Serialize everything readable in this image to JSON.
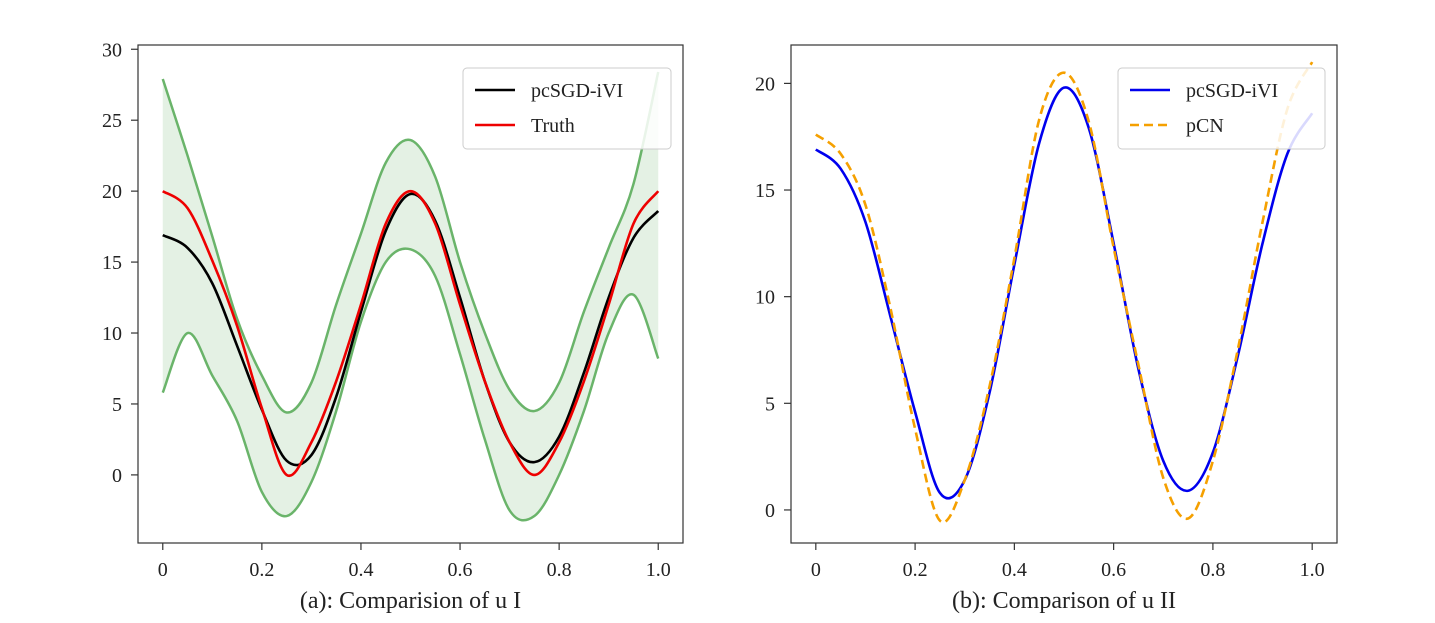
{
  "chart_data": [
    {
      "type": "line",
      "title": "",
      "xlabel": "(a): Comparision of u I",
      "ylabel": "",
      "xlim": [
        -0.05,
        1.05
      ],
      "ylim": [
        -4.8,
        30.3
      ],
      "xticks": [
        0,
        0.2,
        0.4,
        0.6,
        0.8,
        1.0
      ],
      "xtick_labels": [
        "0",
        "0.2",
        "0.4",
        "0.6",
        "0.8",
        "1.0"
      ],
      "yticks": [
        0,
        5,
        10,
        15,
        20,
        25,
        30
      ],
      "ytick_labels": [
        "0",
        "5",
        "10",
        "15",
        "20",
        "25",
        "30"
      ],
      "grid": false,
      "legend_position": "top-right",
      "legend": [
        "pcSGD-iVI",
        "Truth"
      ],
      "x": [
        0,
        0.05,
        0.1,
        0.15,
        0.2,
        0.25,
        0.3,
        0.35,
        0.4,
        0.45,
        0.5,
        0.55,
        0.6,
        0.65,
        0.7,
        0.75,
        0.8,
        0.85,
        0.9,
        0.95,
        1.0
      ],
      "series": [
        {
          "name": "pcSGD-iVI",
          "color": "#000000",
          "style": "solid",
          "values": [
            16.9,
            16.0,
            13.5,
            9.1,
            4.6,
            1.0,
            1.4,
            5.5,
            11.5,
            17.2,
            19.8,
            17.9,
            12.5,
            6.6,
            2.3,
            0.9,
            2.7,
            7.2,
            12.5,
            16.7,
            18.6
          ]
        },
        {
          "name": "Truth",
          "color": "#ee0000",
          "style": "solid",
          "values": [
            20.0,
            18.8,
            15.1,
            10.5,
            4.7,
            0.0,
            2.3,
            6.6,
            12.0,
            17.7,
            20.0,
            17.7,
            12.0,
            6.6,
            2.3,
            0.0,
            2.3,
            6.6,
            12.0,
            17.7,
            20.0
          ]
        }
      ],
      "band": {
        "color": "#6ab46a",
        "upper": [
          27.9,
          22.5,
          16.8,
          11.0,
          7.0,
          4.4,
          6.5,
          12.0,
          17.0,
          22.0,
          23.6,
          21.0,
          15.0,
          10.0,
          6.0,
          4.5,
          6.5,
          11.5,
          16.0,
          20.5,
          28.4
        ],
        "lower": [
          5.8,
          10.0,
          7.0,
          3.8,
          -1.2,
          -2.9,
          -0.5,
          4.5,
          10.8,
          15.0,
          15.9,
          14.0,
          8.5,
          2.5,
          -2.5,
          -2.9,
          0.0,
          4.5,
          10.0,
          12.7,
          8.2
        ]
      }
    },
    {
      "type": "line",
      "title": "",
      "xlabel": "(b): Comparison of u II",
      "ylabel": "",
      "xlim": [
        -0.05,
        1.05
      ],
      "ylim": [
        -1.55,
        21.8
      ],
      "xticks": [
        0,
        0.2,
        0.4,
        0.6,
        0.8,
        1.0
      ],
      "xtick_labels": [
        "0",
        "0.2",
        "0.4",
        "0.6",
        "0.8",
        "1.0"
      ],
      "yticks": [
        0,
        5,
        10,
        15,
        20
      ],
      "ytick_labels": [
        "0",
        "5",
        "10",
        "15",
        "20"
      ],
      "grid": false,
      "legend_position": "top-right",
      "legend": [
        "pcSGD-iVI",
        "pCN"
      ],
      "x": [
        0,
        0.05,
        0.1,
        0.15,
        0.2,
        0.25,
        0.3,
        0.35,
        0.4,
        0.45,
        0.5,
        0.55,
        0.6,
        0.65,
        0.7,
        0.75,
        0.8,
        0.85,
        0.9,
        0.95,
        1.0
      ],
      "series": [
        {
          "name": "pcSGD-iVI",
          "color": "#0000ee",
          "style": "solid",
          "values": [
            16.9,
            16.0,
            13.5,
            9.1,
            4.6,
            0.8,
            1.4,
            5.5,
            11.5,
            17.2,
            19.8,
            17.9,
            12.5,
            6.6,
            2.3,
            0.9,
            2.7,
            7.2,
            12.5,
            16.7,
            18.6
          ]
        },
        {
          "name": "pCN",
          "color": "#f5a000",
          "style": "dashed",
          "values": [
            17.6,
            16.7,
            14.3,
            9.5,
            3.8,
            -0.5,
            1.4,
            5.8,
            11.8,
            18.3,
            20.5,
            18.2,
            12.3,
            6.8,
            1.5,
            -0.4,
            2.3,
            7.5,
            13.5,
            18.8,
            21.0
          ]
        }
      ]
    }
  ]
}
